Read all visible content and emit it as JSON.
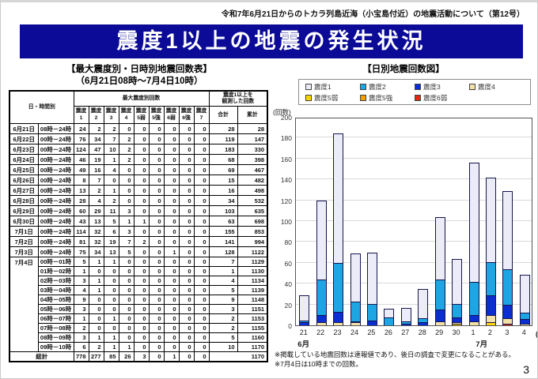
{
  "doc_header": "令和7年6月21日からのトカラ列島近海（小宝島付近）の地震活動について（第12号）",
  "banner_title": "震度1以上の地震の発生状況",
  "page_number": "3",
  "colors": {
    "banner": "#0b0b97"
  },
  "table": {
    "title": "【最大震度別・日時別地震回数表】",
    "subtitle": "（6月21日08時～7月4日10時）",
    "header": {
      "datetime": "日・時間別",
      "max_intensity": "最大震度別回数",
      "observed_line1": "震度1以上を",
      "observed_line2": "観測した回数",
      "intensity_cols": [
        "震度1",
        "震度2",
        "震度3",
        "震度4",
        "震度5弱",
        "震度5強",
        "震度6弱",
        "震度6強",
        "震度7"
      ],
      "total": "合計",
      "cumulative": "累計"
    },
    "rows": [
      {
        "date": "6月21日",
        "time": "08時－24時",
        "values": [
          24,
          2,
          2,
          0,
          0,
          0,
          0,
          0,
          0
        ],
        "total": 28,
        "cum": 28
      },
      {
        "date": "6月22日",
        "time": "00時－24時",
        "values": [
          76,
          34,
          7,
          2,
          0,
          0,
          0,
          0,
          0
        ],
        "total": 119,
        "cum": 147
      },
      {
        "date": "6月23日",
        "time": "00時－24時",
        "values": [
          124,
          47,
          10,
          2,
          0,
          0,
          0,
          0,
          0
        ],
        "total": 183,
        "cum": 330
      },
      {
        "date": "6月24日",
        "time": "00時－24時",
        "values": [
          46,
          19,
          1,
          2,
          0,
          0,
          0,
          0,
          0
        ],
        "total": 68,
        "cum": 398
      },
      {
        "date": "6月25日",
        "time": "00時－24時",
        "values": [
          49,
          16,
          4,
          0,
          0,
          0,
          0,
          0,
          0
        ],
        "total": 69,
        "cum": 467
      },
      {
        "date": "6月26日",
        "time": "00時－24時",
        "values": [
          8,
          7,
          0,
          0,
          0,
          0,
          0,
          0,
          0
        ],
        "total": 15,
        "cum": 482
      },
      {
        "date": "6月27日",
        "time": "00時－24時",
        "values": [
          13,
          2,
          1,
          0,
          0,
          0,
          0,
          0,
          0
        ],
        "total": 16,
        "cum": 498
      },
      {
        "date": "6月28日",
        "time": "00時－24時",
        "values": [
          28,
          4,
          2,
          0,
          0,
          0,
          0,
          0,
          0
        ],
        "total": 34,
        "cum": 532
      },
      {
        "date": "6月29日",
        "time": "00時－24時",
        "values": [
          60,
          29,
          11,
          3,
          0,
          0,
          0,
          0,
          0
        ],
        "total": 103,
        "cum": 635
      },
      {
        "date": "6月30日",
        "time": "00時－24時",
        "values": [
          43,
          13,
          5,
          1,
          1,
          0,
          0,
          0,
          0
        ],
        "total": 63,
        "cum": 698
      },
      {
        "date": "7月1日",
        "time": "00時－24時",
        "values": [
          114,
          32,
          6,
          3,
          0,
          0,
          0,
          0,
          0
        ],
        "total": 155,
        "cum": 853
      },
      {
        "date": "7月2日",
        "time": "00時－24時",
        "values": [
          81,
          32,
          19,
          7,
          2,
          0,
          0,
          0,
          0
        ],
        "total": 141,
        "cum": 994
      },
      {
        "date": "7月3日",
        "time": "00時－24時",
        "values": [
          75,
          34,
          13,
          5,
          0,
          0,
          1,
          0,
          0
        ],
        "total": 128,
        "cum": 1122
      },
      {
        "date": "7月4日",
        "rowspan": 10,
        "time": "00時－01時",
        "values": [
          5,
          1,
          1,
          0,
          0,
          0,
          0,
          0,
          0
        ],
        "total": 7,
        "cum": 1129
      },
      {
        "date": null,
        "time": "01時－02時",
        "values": [
          1,
          0,
          0,
          0,
          0,
          0,
          0,
          0,
          0
        ],
        "total": 1,
        "cum": 1130
      },
      {
        "date": null,
        "time": "02時－03時",
        "values": [
          3,
          1,
          0,
          0,
          0,
          0,
          0,
          0,
          0
        ],
        "total": 4,
        "cum": 1134
      },
      {
        "date": null,
        "time": "03時－04時",
        "values": [
          4,
          1,
          0,
          0,
          0,
          0,
          0,
          0,
          0
        ],
        "total": 5,
        "cum": 1139
      },
      {
        "date": null,
        "time": "04時－05時",
        "values": [
          9,
          0,
          0,
          0,
          0,
          0,
          0,
          0,
          0
        ],
        "total": 9,
        "cum": 1148
      },
      {
        "date": null,
        "time": "05時－06時",
        "values": [
          3,
          0,
          0,
          0,
          0,
          0,
          0,
          0,
          0
        ],
        "total": 3,
        "cum": 1151
      },
      {
        "date": null,
        "time": "06時－07時",
        "values": [
          1,
          0,
          1,
          0,
          0,
          0,
          0,
          0,
          0
        ],
        "total": 2,
        "cum": 1153
      },
      {
        "date": null,
        "time": "07時－08時",
        "values": [
          2,
          0,
          0,
          0,
          0,
          0,
          0,
          0,
          0
        ],
        "total": 2,
        "cum": 1155
      },
      {
        "date": null,
        "time": "08時－09時",
        "values": [
          3,
          1,
          1,
          0,
          0,
          0,
          0,
          0,
          0
        ],
        "total": 5,
        "cum": 1160
      },
      {
        "date": null,
        "time": "09時－10時",
        "values": [
          6,
          2,
          1,
          1,
          0,
          0,
          0,
          0,
          0
        ],
        "total": 10,
        "cum": 1170
      }
    ],
    "grand_total": {
      "label": "総計",
      "values": [
        778,
        277,
        85,
        26,
        3,
        0,
        1,
        0,
        0
      ],
      "cum": 1170
    }
  },
  "chart_data": {
    "type": "bar",
    "stacked": true,
    "title": "【日別地震回数図】",
    "ylabel": "(回数)",
    "ylim": [
      0,
      200
    ],
    "ytick_step": 20,
    "grid": true,
    "legend_position": "top",
    "categories": [
      "21",
      "22",
      "23",
      "24",
      "25",
      "26",
      "27",
      "28",
      "29",
      "30",
      "1",
      "2",
      "3",
      "4"
    ],
    "x_suffix": "(日)",
    "month_labels": [
      {
        "text": "6月",
        "center_slot": 0
      },
      {
        "text": "7月",
        "center_slot": 10.5
      }
    ],
    "series": [
      {
        "name": "震度1",
        "color": "#ececf8",
        "values": [
          24,
          76,
          124,
          46,
          49,
          8,
          13,
          28,
          60,
          43,
          114,
          81,
          75,
          37
        ]
      },
      {
        "name": "震度2",
        "color": "#1ea5e3",
        "values": [
          2,
          34,
          47,
          19,
          16,
          7,
          2,
          4,
          29,
          13,
          32,
          32,
          34,
          6
        ]
      },
      {
        "name": "震度3",
        "color": "#0a2ed1",
        "values": [
          2,
          7,
          10,
          1,
          4,
          0,
          1,
          2,
          11,
          5,
          6,
          19,
          13,
          4
        ]
      },
      {
        "name": "震度4",
        "color": "#f2e2a8",
        "values": [
          0,
          2,
          2,
          2,
          0,
          0,
          0,
          0,
          3,
          1,
          3,
          7,
          5,
          1
        ]
      },
      {
        "name": "震度5弱",
        "color": "#ffd406",
        "values": [
          0,
          0,
          0,
          0,
          0,
          0,
          0,
          0,
          0,
          1,
          0,
          2,
          0,
          0
        ]
      },
      {
        "name": "震度5強",
        "color": "#f09e00",
        "values": [
          0,
          0,
          0,
          0,
          0,
          0,
          0,
          0,
          0,
          0,
          0,
          0,
          0,
          0
        ]
      },
      {
        "name": "震度6弱",
        "color": "#e02812",
        "values": [
          0,
          0,
          0,
          0,
          0,
          0,
          0,
          0,
          0,
          0,
          0,
          0,
          1,
          0
        ]
      }
    ],
    "totals": [
      28,
      119,
      183,
      68,
      69,
      15,
      16,
      34,
      103,
      63,
      155,
      141,
      128,
      48
    ],
    "notes": [
      "※掲載している地震回数は速報値であり、後日の調査で変更になることがある。",
      "※7月4日は10時までの回数。"
    ]
  }
}
